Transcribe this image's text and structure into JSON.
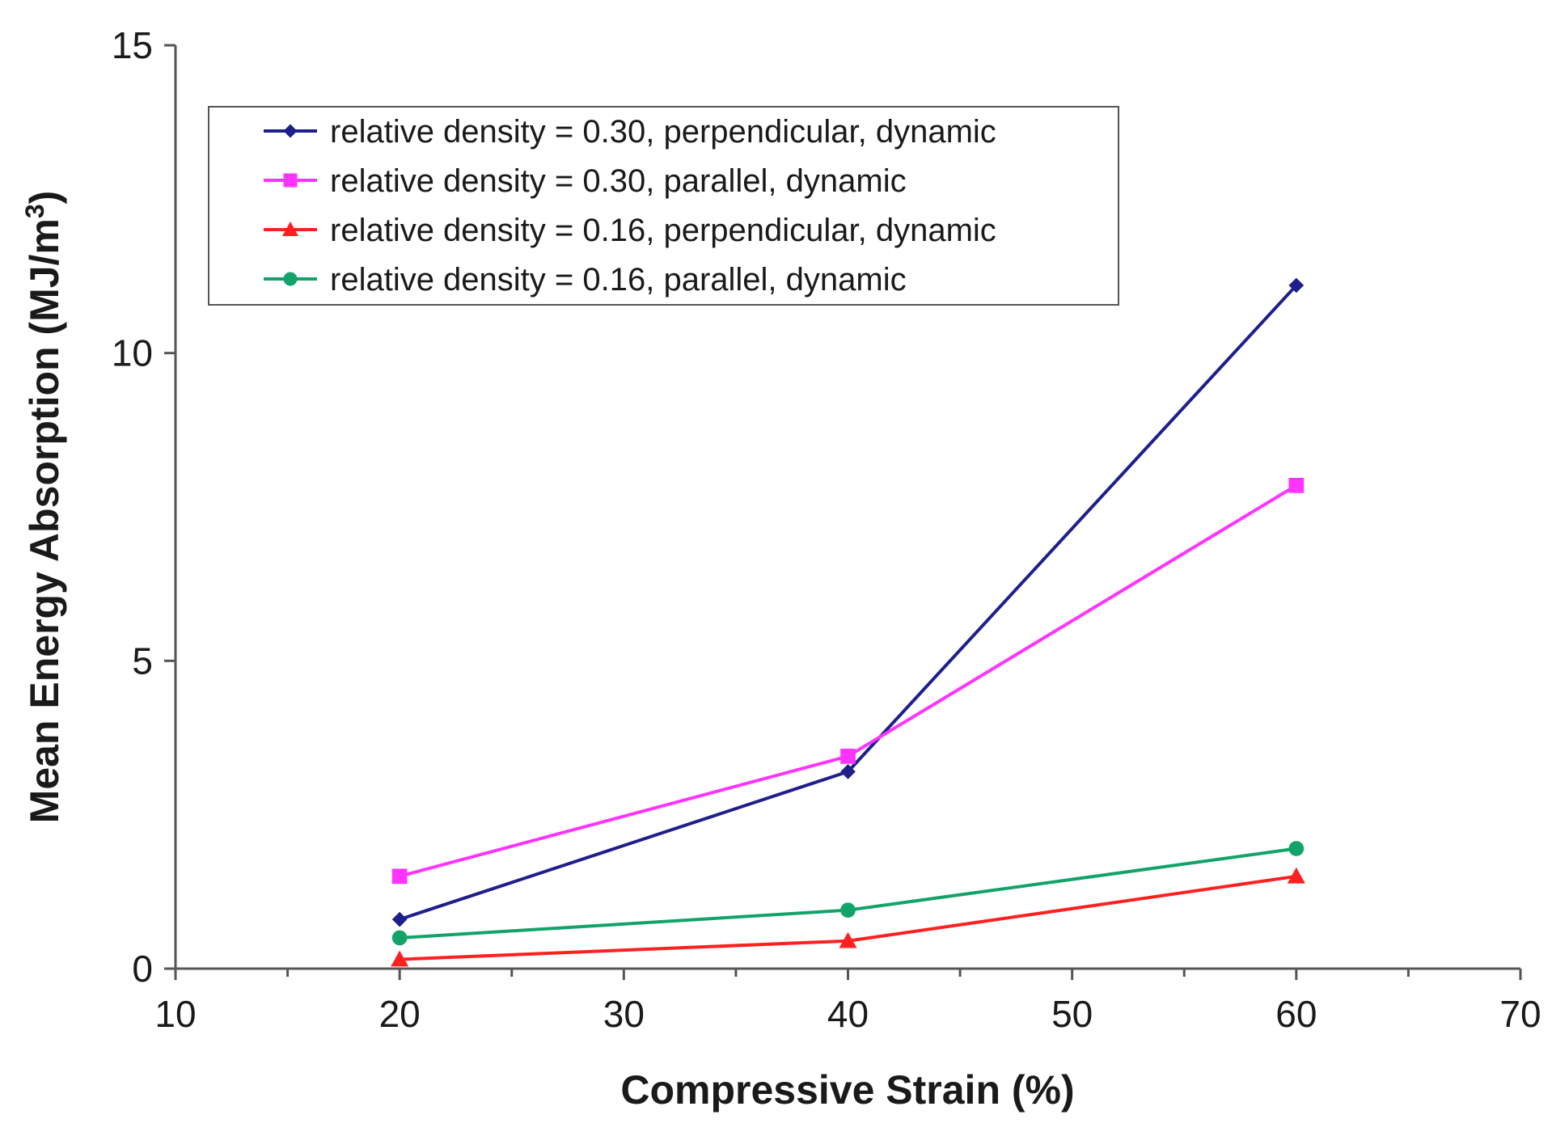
{
  "chart_data": {
    "type": "line",
    "title": "",
    "xlabel": "Compressive Strain (%)",
    "ylabel_main": "Mean Energy Absorption (MJ/m",
    "ylabel_sup": "3",
    "ylabel_end": ")",
    "xlim": [
      10,
      70
    ],
    "ylim": [
      0,
      15
    ],
    "x_major_ticks": [
      10,
      20,
      30,
      40,
      50,
      60,
      70
    ],
    "x_minor_ticks": [
      15,
      25,
      35,
      45,
      55,
      65
    ],
    "x_tick_labels": [
      "10",
      "20",
      "30",
      "40",
      "50",
      "60",
      "70"
    ],
    "y_ticks": [
      0,
      5,
      10,
      15
    ],
    "y_tick_labels": [
      "0",
      "5",
      "10",
      "15"
    ],
    "grid": false,
    "legend_position": "top-left",
    "series": [
      {
        "name": "relative density = 0.30, perpendicular, dynamic",
        "color": "#1f1f8c",
        "marker": "diamond",
        "x": [
          20,
          40,
          60
        ],
        "y": [
          0.8,
          3.2,
          11.1
        ]
      },
      {
        "name": "relative density = 0.30, parallel, dynamic",
        "color": "#ff33ff",
        "marker": "square",
        "x": [
          20,
          40,
          60
        ],
        "y": [
          1.5,
          3.45,
          7.85
        ]
      },
      {
        "name": "relative density = 0.16, perpendicular, dynamic",
        "color": "#ff2020",
        "marker": "triangle",
        "x": [
          20,
          40,
          60
        ],
        "y": [
          0.15,
          0.45,
          1.5
        ]
      },
      {
        "name": "relative density = 0.16, parallel, dynamic",
        "color": "#12a36a",
        "marker": "circle",
        "x": [
          20,
          40,
          60
        ],
        "y": [
          0.5,
          0.95,
          1.95
        ]
      }
    ]
  }
}
